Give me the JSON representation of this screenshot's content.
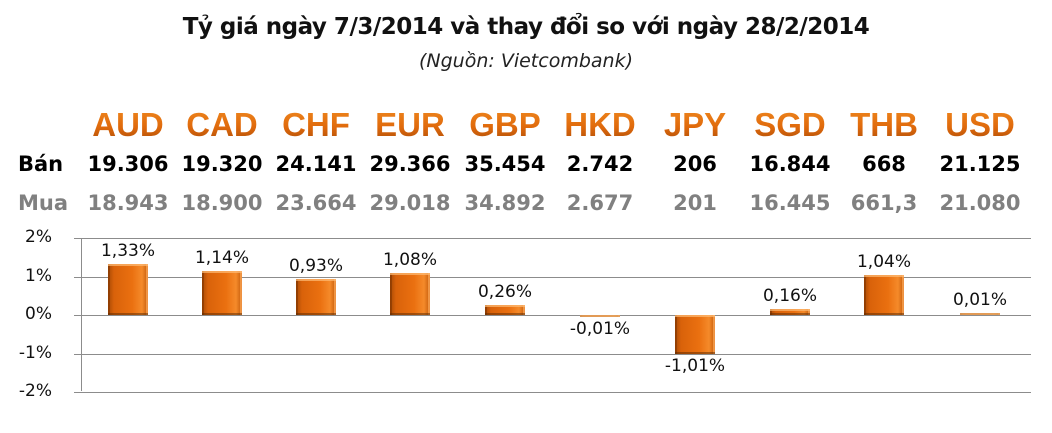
{
  "title": "Tỷ giá ngày 7/3/2014 và thay đổi so với ngày 28/2/2014",
  "subtitle": "(Nguồn: Vietcombank)",
  "row_labels": {
    "sell": "Bán",
    "buy": "Mua"
  },
  "currencies": [
    {
      "code": "AUD",
      "sell": "19.306",
      "buy": "18.943",
      "change": "1,33%"
    },
    {
      "code": "CAD",
      "sell": "19.320",
      "buy": "18.900",
      "change": "1,14%"
    },
    {
      "code": "CHF",
      "sell": "24.141",
      "buy": "23.664",
      "change": "0,93%"
    },
    {
      "code": "EUR",
      "sell": "29.366",
      "buy": "29.018",
      "change": "1,08%"
    },
    {
      "code": "GBP",
      "sell": "35.454",
      "buy": "34.892",
      "change": "0,26%"
    },
    {
      "code": "HKD",
      "sell": "2.742",
      "buy": "2.677",
      "change": "-0,01%"
    },
    {
      "code": "JPY",
      "sell": "206",
      "buy": "201",
      "change": "-1,01%"
    },
    {
      "code": "SGD",
      "sell": "16.844",
      "buy": "16.445",
      "change": "0,16%"
    },
    {
      "code": "THB",
      "sell": "668",
      "buy": "661,3",
      "change": "1,04%"
    },
    {
      "code": "USD",
      "sell": "21.125",
      "buy": "21.080",
      "change": "0,01%"
    }
  ],
  "y_ticks": [
    "2%",
    "1%",
    "0%",
    "-1%",
    "-2%"
  ],
  "colors": {
    "accent": "#e06a0c",
    "bar": "#ea7010",
    "sell_text": "#000000",
    "buy_text": "#808080",
    "grid": "#8c8c8c"
  },
  "chart_data": {
    "type": "bar",
    "title": "Tỷ giá ngày 7/3/2014 và thay đổi so với ngày 28/2/2014",
    "subtitle": "(Nguồn: Vietcombank)",
    "categories": [
      "AUD",
      "CAD",
      "CHF",
      "EUR",
      "GBP",
      "HKD",
      "JPY",
      "SGD",
      "THB",
      "USD"
    ],
    "values": [
      1.33,
      1.14,
      0.93,
      1.08,
      0.26,
      -0.01,
      -1.01,
      0.16,
      1.04,
      0.01
    ],
    "value_labels": [
      "1,33%",
      "1,14%",
      "0,93%",
      "1,08%",
      "0,26%",
      "-0,01%",
      "-1,01%",
      "0,16%",
      "1,04%",
      "0,01%"
    ],
    "table": {
      "Bán": [
        "19.306",
        "19.320",
        "24.141",
        "29.366",
        "35.454",
        "2.742",
        "206",
        "16.844",
        "668",
        "21.125"
      ],
      "Mua": [
        "18.943",
        "18.900",
        "23.664",
        "29.018",
        "34.892",
        "2.677",
        "201",
        "16.445",
        "661,3",
        "21.080"
      ]
    },
    "xlabel": "",
    "ylabel": "",
    "ylim": [
      -2,
      2
    ],
    "yticks": [
      "2%",
      "1%",
      "0%",
      "-1%",
      "-2%"
    ],
    "grid": true,
    "legend": "none"
  }
}
